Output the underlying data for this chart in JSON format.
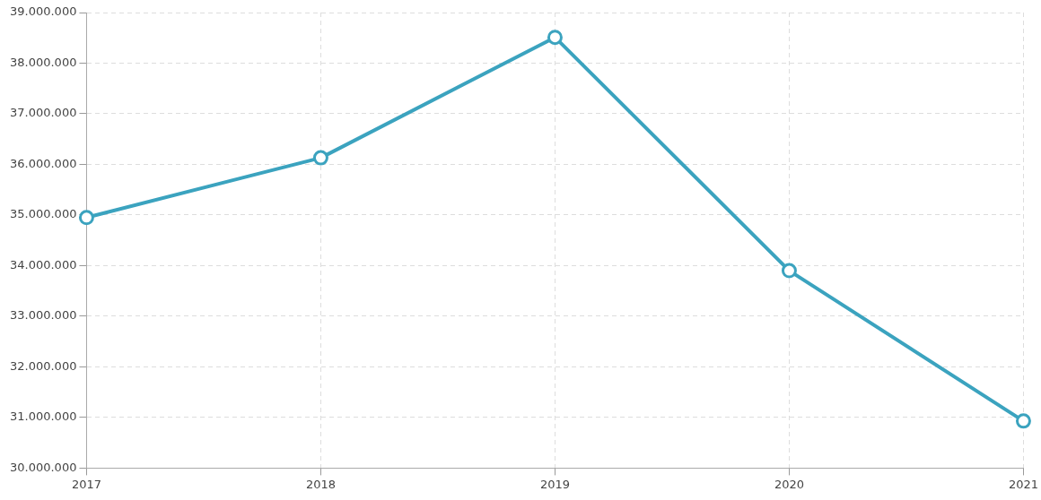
{
  "chart_data": {
    "type": "line",
    "categories": [
      "2017",
      "2018",
      "2019",
      "2020",
      "2021"
    ],
    "series": [
      {
        "color": "#3ba3bf",
        "values": [
          34950000,
          36130000,
          38510000,
          33900000,
          30930000
        ]
      }
    ],
    "ylim": [
      30000000,
      39000000
    ],
    "yticks": [
      {
        "value": 30000000,
        "label": "30.000.000"
      },
      {
        "value": 31000000,
        "label": "31.000.000"
      },
      {
        "value": 32000000,
        "label": "32.000.000"
      },
      {
        "value": 33000000,
        "label": "33.000.000"
      },
      {
        "value": 34000000,
        "label": "34.000.000"
      },
      {
        "value": 35000000,
        "label": "35.000.000"
      },
      {
        "value": 36000000,
        "label": "36.000.000"
      },
      {
        "value": 37000000,
        "label": "37.000.000"
      },
      {
        "value": 38000000,
        "label": "38.000.000"
      },
      {
        "value": 39000000,
        "label": "39.000.000"
      }
    ],
    "grid": true,
    "legend": false,
    "marker": "circle",
    "line_style": "solid"
  }
}
